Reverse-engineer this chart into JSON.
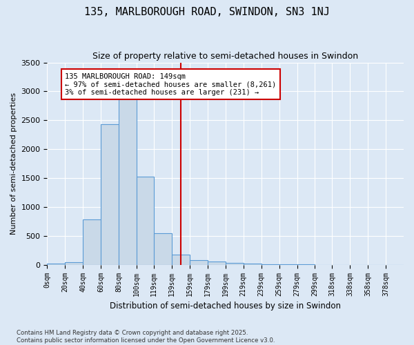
{
  "title": "135, MARLBOROUGH ROAD, SWINDON, SN3 1NJ",
  "subtitle": "Size of property relative to semi-detached houses in Swindon",
  "xlabel": "Distribution of semi-detached houses by size in Swindon",
  "ylabel": "Number of semi-detached properties",
  "annotation_line1": "135 MARLBOROUGH ROAD: 149sqm",
  "annotation_line2": "← 97% of semi-detached houses are smaller (8,261)",
  "annotation_line3": "3% of semi-detached houses are larger (231) →",
  "property_size": 149,
  "bin_edges": [
    0,
    20,
    40,
    60,
    80,
    100,
    119,
    139,
    159,
    179,
    199,
    219,
    239,
    259,
    279,
    299,
    318,
    338,
    358,
    378,
    398
  ],
  "bin_counts": [
    20,
    50,
    790,
    2430,
    2880,
    1520,
    540,
    170,
    80,
    55,
    35,
    15,
    10,
    5,
    3,
    2,
    1,
    1,
    0,
    0
  ],
  "bar_facecolor": "#c9d9e8",
  "bar_edgecolor": "#5b9bd5",
  "vline_color": "#cc0000",
  "bg_color": "#dce8f5",
  "grid_color": "#ffffff",
  "annotation_box_edgecolor": "#cc0000",
  "annotation_box_facecolor": "#ffffff",
  "ylim": [
    0,
    3500
  ],
  "footer_line1": "Contains HM Land Registry data © Crown copyright and database right 2025.",
  "footer_line2": "Contains public sector information licensed under the Open Government Licence v3.0."
}
